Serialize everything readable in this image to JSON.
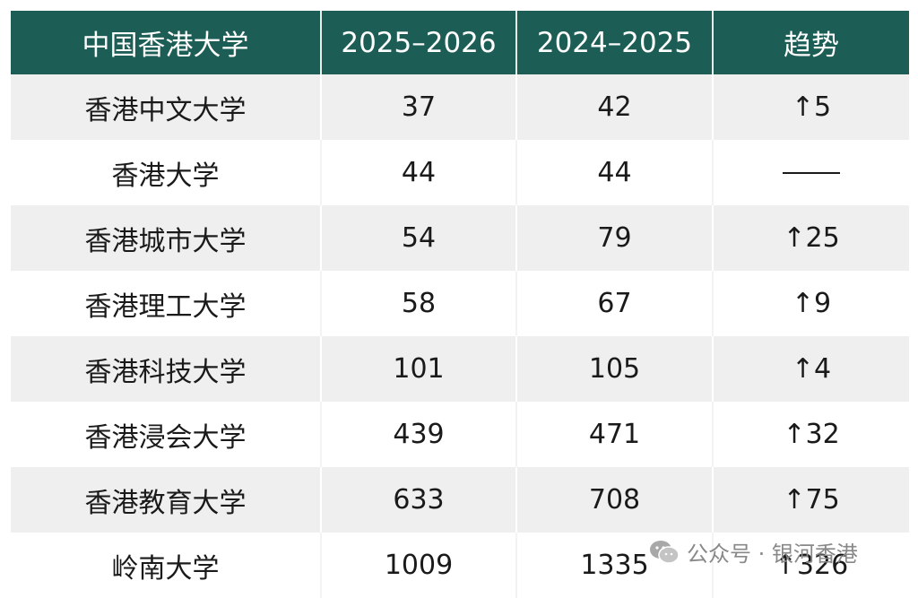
{
  "headers": [
    "中国香港大学",
    "2025–2026",
    "2024–2025",
    "趋势"
  ],
  "rows": [
    {
      "name": "香港中文大学",
      "y2026": "37",
      "y2025": "42",
      "trend": "↑5"
    },
    {
      "name": "香港大学",
      "y2026": "44",
      "y2025": "44",
      "trend": ""
    },
    {
      "name": "香港城市大学",
      "y2026": "54",
      "y2025": "79",
      "trend": "↑25"
    },
    {
      "name": "香港理工大学",
      "y2026": "58",
      "y2025": "67",
      "trend": "↑9"
    },
    {
      "name": "香港科技大学",
      "y2026": "101",
      "y2025": "105",
      "trend": "↑4"
    },
    {
      "name": "香港浸会大学",
      "y2026": "439",
      "y2025": "471",
      "trend": "↑32"
    },
    {
      "name": "香港教育大学",
      "y2026": "633",
      "y2025": "708",
      "trend": "↑75"
    },
    {
      "name": "岭南大学",
      "y2026": "1009",
      "y2025": "1335",
      "trend": "↑326"
    }
  ],
  "watermark": {
    "text": "公众号 · 银河香港",
    "icon": "wechat-icon"
  },
  "colors": {
    "header_bg": "#1c5e55",
    "stripe_bg": "#efefef"
  }
}
